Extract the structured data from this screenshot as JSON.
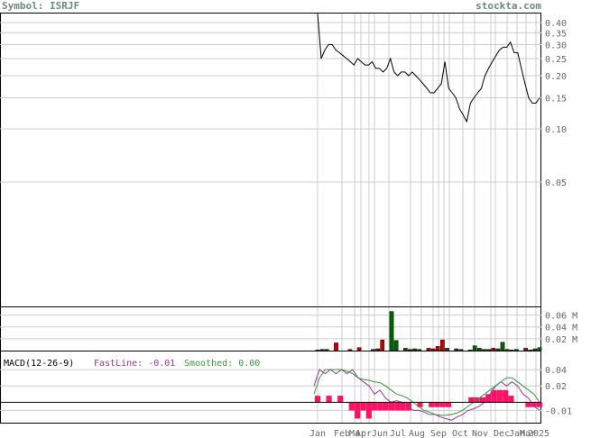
{
  "header": {
    "symbol_text": "Symbol: ISRJF",
    "site": "stockta.com"
  },
  "colors": {
    "price": "#000000",
    "grid": "#cccccc",
    "vol_up": "#006600",
    "vol_down": "#cc0000",
    "fastline": "#993399",
    "smoothed": "#339933",
    "macd_hist": "#ff1166",
    "label": "#666666"
  },
  "chart_data": [
    {
      "type": "line",
      "panel": "price",
      "scale": "log",
      "ylim": [
        0.01,
        0.45
      ],
      "y_ticks": [
        "0.40",
        "0.35",
        "0.30",
        "0.25",
        "0.20",
        "0.15",
        "0.10",
        "0.05"
      ],
      "y_tick_values": [
        0.4,
        0.35,
        0.3,
        0.25,
        0.2,
        0.15,
        0.1,
        0.05
      ],
      "x_ticks": [
        "Jan",
        "Feb",
        "Mar",
        "Apr",
        "Jun",
        "Jul",
        "Aug",
        "Sep",
        "Oct",
        "Nov",
        "Dec",
        "Jan",
        "Mar",
        "2025"
      ],
      "series": [
        {
          "values": [
            0.45,
            0.25,
            0.28,
            0.3,
            0.3,
            0.28,
            0.27,
            0.26,
            0.25,
            0.24,
            0.23,
            0.25,
            0.24,
            0.23,
            0.23,
            0.24,
            0.22,
            0.22,
            0.21,
            0.22,
            0.25,
            0.21,
            0.2,
            0.21,
            0.21,
            0.2,
            0.21,
            0.2,
            0.19,
            0.18,
            0.17,
            0.16,
            0.16,
            0.17,
            0.18,
            0.24,
            0.17,
            0.16,
            0.15,
            0.13,
            0.12,
            0.11,
            0.14,
            0.15,
            0.16,
            0.17,
            0.2,
            0.22,
            0.24,
            0.26,
            0.28,
            0.29,
            0.29,
            0.31,
            0.27,
            0.27,
            0.22,
            0.18,
            0.15,
            0.14,
            0.14,
            0.15
          ]
        }
      ]
    },
    {
      "type": "bar",
      "panel": "volume",
      "y_ticks": [
        "0.06 M",
        "0.04 M",
        "0.02 M"
      ],
      "y_tick_values": [
        0.06,
        0.04,
        0.02
      ],
      "ylim": [
        0,
        0.07
      ],
      "values": [
        0.001,
        0.002,
        0.002,
        0.0,
        0.013,
        0.0,
        0.0,
        0.002,
        0.0,
        0.005,
        0.0,
        0.0,
        0.002,
        0.003,
        0.018,
        0.0,
        0.066,
        0.017,
        0.0,
        0.004,
        0.002,
        0.003,
        0.002,
        0.0,
        0.004,
        0.003,
        0.007,
        0.018,
        0.004,
        0.0,
        0.003,
        0.002,
        0.0,
        0.001,
        0.008,
        0.004,
        0.002,
        0.002,
        0.004,
        0.003,
        0.014,
        0.002,
        0.001,
        0.002,
        0.0,
        0.004,
        0.001,
        0.003,
        0.005
      ],
      "up": [
        true,
        true,
        true,
        true,
        false,
        true,
        true,
        false,
        true,
        false,
        true,
        true,
        true,
        false,
        false,
        true,
        true,
        true,
        false,
        true,
        false,
        true,
        true,
        true,
        false,
        false,
        false,
        false,
        true,
        true,
        true,
        false,
        true,
        true,
        true,
        true,
        false,
        true,
        false,
        true,
        true,
        false,
        true,
        true,
        true,
        false,
        true,
        true,
        true
      ]
    },
    {
      "type": "line",
      "panel": "macd",
      "title": "MACD(12-26-9)",
      "fastline_label": "FastLine: -0.01",
      "smoothed_label": "Smoothed: 0.00",
      "y_ticks": [
        "0.04",
        "0.02",
        "-0.01"
      ],
      "y_tick_values": [
        0.04,
        0.02,
        -0.01
      ],
      "ylim": [
        -0.025,
        0.06
      ],
      "series": [
        {
          "name": "FastLine",
          "values": [
            0.02,
            0.04,
            0.035,
            0.04,
            0.035,
            0.04,
            0.035,
            0.04,
            0.03,
            0.025,
            0.02,
            0.01,
            0.015,
            0.005,
            0.0,
            0.002,
            0.0,
            -0.005,
            -0.01,
            -0.01,
            -0.012,
            -0.015,
            -0.015,
            -0.018,
            -0.02,
            -0.022,
            -0.018,
            -0.015,
            -0.01,
            -0.008,
            -0.005,
            0.0,
            0.01,
            0.02,
            0.025,
            0.02,
            0.025,
            0.02,
            0.01,
            0.005,
            -0.005,
            -0.01
          ]
        },
        {
          "name": "Smoothed",
          "values": [
            0.01,
            0.03,
            0.04,
            0.04,
            0.04,
            0.04,
            0.038,
            0.035,
            0.03,
            0.028,
            0.027,
            0.025,
            0.024,
            0.02,
            0.015,
            0.01,
            0.008,
            0.005,
            0.0,
            -0.005,
            -0.01,
            -0.012,
            -0.015,
            -0.016,
            -0.016,
            -0.015,
            -0.013,
            -0.01,
            -0.005,
            0.0,
            0.005,
            0.01,
            0.015,
            0.02,
            0.025,
            0.03,
            0.03,
            0.025,
            0.02,
            0.015,
            0.01,
            0.0
          ]
        }
      ],
      "histogram": [
        0.008,
        0.0,
        0.008,
        0.0,
        0.008,
        0.0,
        -0.01,
        -0.02,
        -0.01,
        -0.02,
        -0.01,
        -0.01,
        -0.01,
        -0.01,
        -0.01,
        -0.01,
        -0.01,
        0.0,
        -0.006,
        0.0,
        -0.006,
        -0.006,
        -0.006,
        -0.006,
        0.0,
        0.0,
        0.0,
        0.006,
        0.006,
        0.006,
        0.01,
        0.015,
        0.015,
        0.015,
        0.008,
        0.0,
        0.0,
        -0.006,
        -0.006,
        -0.006
      ]
    }
  ]
}
